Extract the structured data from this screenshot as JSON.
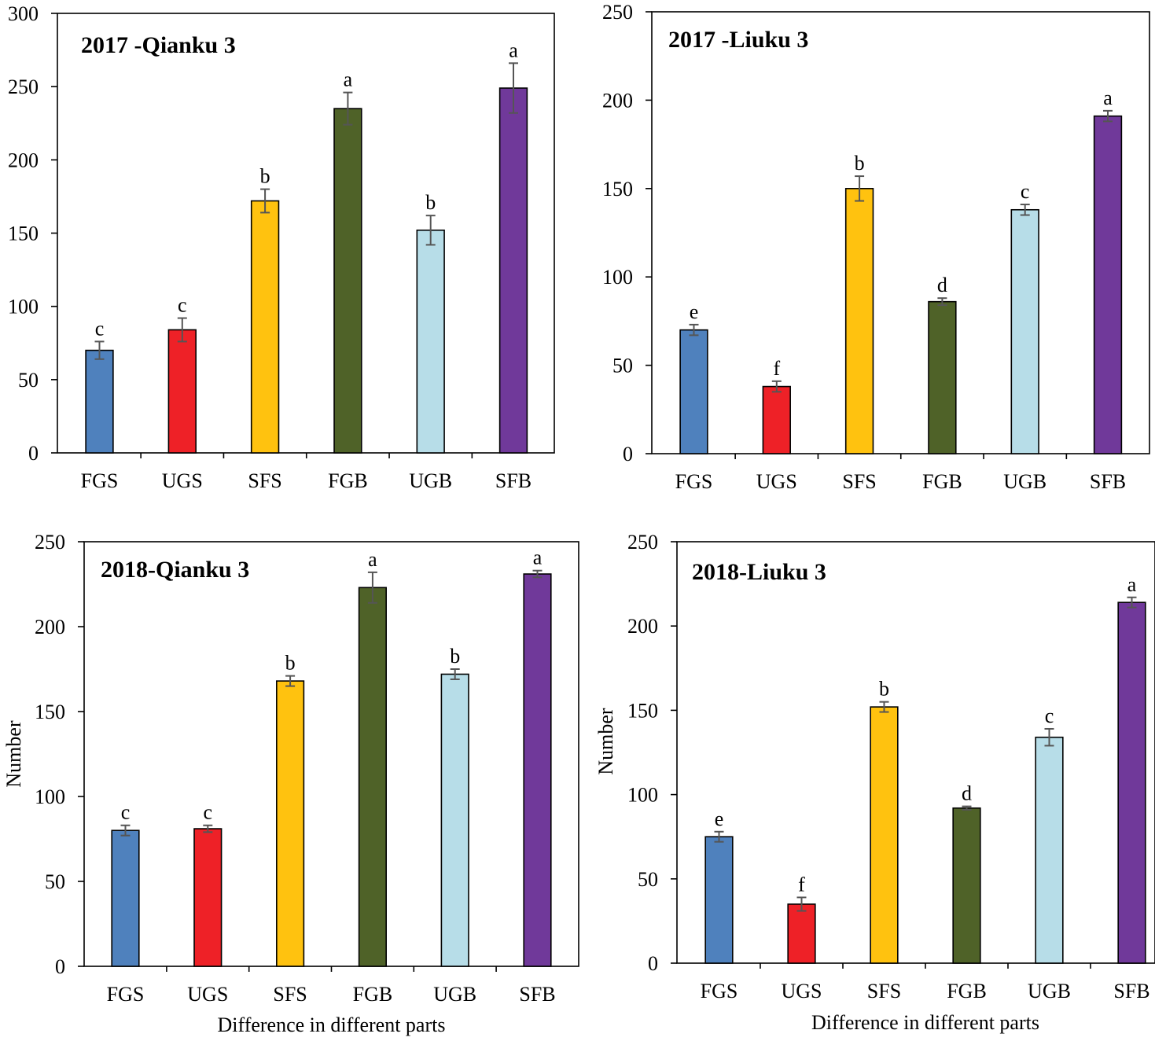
{
  "colors": {
    "FGS": "#4f81bd",
    "UGS": "#ee2127",
    "SFS": "#ffc20f",
    "FGB": "#4f6228",
    "UGB": "#b7dde8",
    "SFB": "#70399a"
  },
  "chart_data": [
    {
      "type": "bar",
      "title": "2017 -Qianku 3",
      "xlabel": "",
      "ylabel": "",
      "categories": [
        "FGS",
        "UGS",
        "SFS",
        "FGB",
        "UGB",
        "SFB"
      ],
      "values": [
        70,
        84,
        172,
        235,
        152,
        249
      ],
      "errors": [
        6,
        8,
        8,
        11,
        10,
        17
      ],
      "letters": [
        "c",
        "c",
        "b",
        "a",
        "b",
        "a"
      ],
      "ylim": [
        0,
        300
      ],
      "yticks": [
        0,
        50,
        100,
        150,
        200,
        250,
        300
      ]
    },
    {
      "type": "bar",
      "title": "2017 -Liuku 3",
      "xlabel": "",
      "ylabel": "",
      "categories": [
        "FGS",
        "UGS",
        "SFS",
        "FGB",
        "UGB",
        "SFB"
      ],
      "values": [
        70,
        38,
        150,
        86,
        138,
        191
      ],
      "errors": [
        3,
        3,
        7,
        2,
        3,
        3
      ],
      "letters": [
        "e",
        "f",
        "b",
        "d",
        "c",
        "a"
      ],
      "ylim": [
        0,
        250
      ],
      "yticks": [
        0,
        50,
        100,
        150,
        200,
        250
      ]
    },
    {
      "type": "bar",
      "title": "2018-Qianku 3",
      "xlabel": "Difference in different parts",
      "ylabel": "Number",
      "categories": [
        "FGS",
        "UGS",
        "SFS",
        "FGB",
        "UGB",
        "SFB"
      ],
      "values": [
        80,
        81,
        168,
        223,
        172,
        231
      ],
      "errors": [
        3,
        2,
        3,
        9,
        3,
        2
      ],
      "letters": [
        "c",
        "c",
        "b",
        "a",
        "b",
        "a"
      ],
      "ylim": [
        0,
        250
      ],
      "yticks": [
        0,
        50,
        100,
        150,
        200,
        250
      ]
    },
    {
      "type": "bar",
      "title": "2018-Liuku 3",
      "xlabel": "Difference in different parts",
      "ylabel": "Number",
      "categories": [
        "FGS",
        "UGS",
        "SFS",
        "FGB",
        "UGB",
        "SFB"
      ],
      "values": [
        75,
        35,
        152,
        92,
        134,
        214
      ],
      "errors": [
        3,
        4,
        3,
        1,
        5,
        3
      ],
      "letters": [
        "e",
        "f",
        "b",
        "d",
        "c",
        "a"
      ],
      "ylim": [
        0,
        250
      ],
      "yticks": [
        0,
        50,
        100,
        150,
        200,
        250
      ]
    }
  ]
}
